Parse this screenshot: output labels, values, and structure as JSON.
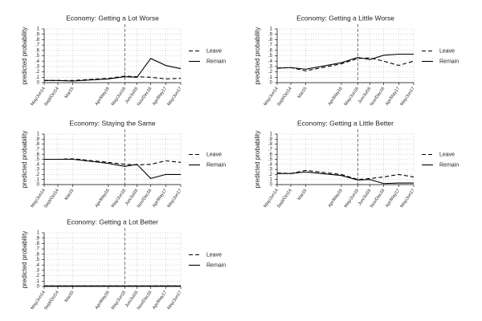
{
  "chart_data": [
    {
      "type": "line",
      "title": "Economy: Getting a Lot Worse",
      "y_label": "predicted probability",
      "categories": [
        "May/Jun14",
        "Sept/Oct14",
        "Mar15",
        "Apr/May16",
        "May/Jun16",
        "Jun/Jul16",
        "Nov/Dec16",
        "Apr/May17",
        "May/Jun17"
      ],
      "series": [
        {
          "name": "Leave",
          "color": "#000000",
          "dash": "dashed",
          "values": [
            0.04,
            0.04,
            0.04,
            0.08,
            0.12,
            0.11,
            0.1,
            0.07,
            0.08
          ]
        },
        {
          "name": "Remain",
          "color": "#000000",
          "dash": "solid",
          "values": [
            0.04,
            0.04,
            0.03,
            0.07,
            0.11,
            0.1,
            0.45,
            0.32,
            0.26
          ]
        }
      ],
      "ylim": [
        0,
        1
      ],
      "yticks": [
        0,
        {
          "value": 0.1,
          "label": ".1"
        },
        {
          "value": 0.2,
          "label": ".2"
        },
        {
          "value": 0.3,
          "label": ".3"
        },
        {
          "value": 0.4,
          "label": ".4"
        },
        {
          "value": 0.5,
          "label": ".5"
        },
        {
          "value": 0.6,
          "label": ".6"
        },
        {
          "value": 0.7,
          "label": ".7"
        },
        {
          "value": 0.8,
          "label": ".8"
        },
        {
          "value": 0.9,
          "label": ".9"
        },
        1
      ],
      "grid": true
    },
    {
      "type": "line",
      "title": "Economy: Getting a Little Worse",
      "y_label": "predicted probability",
      "categories": [
        "May/Jun14",
        "Sept/Oct14",
        "Mar15",
        "Apr/May16",
        "May/Jun16",
        "Jun/Jul16",
        "Nov/Dec16",
        "Apr/May17",
        "May/Jun17"
      ],
      "series": [
        {
          "name": "Leave",
          "color": "#000000",
          "dash": "dashed",
          "values": [
            0.27,
            0.28,
            0.22,
            0.35,
            0.45,
            0.46,
            0.4,
            0.32,
            0.4
          ]
        },
        {
          "name": "Remain",
          "color": "#000000",
          "dash": "solid",
          "values": [
            0.27,
            0.28,
            0.25,
            0.37,
            0.47,
            0.43,
            0.51,
            0.53,
            0.53
          ]
        }
      ],
      "ylim": [
        0,
        1
      ],
      "yticks": [
        0,
        {
          "value": 0.1,
          "label": ".1"
        },
        {
          "value": 0.2,
          "label": ".2"
        },
        {
          "value": 0.3,
          "label": ".3"
        },
        {
          "value": 0.4,
          "label": ".4"
        },
        {
          "value": 0.5,
          "label": ".5"
        },
        {
          "value": 0.6,
          "label": ".6"
        },
        {
          "value": 0.7,
          "label": ".7"
        },
        {
          "value": 0.8,
          "label": ".8"
        },
        {
          "value": 0.9,
          "label": ".9"
        },
        1
      ],
      "grid": true
    },
    {
      "type": "line",
      "title": "Economy: Staying the Same",
      "y_label": "predicted probability",
      "categories": [
        "May/Jun14",
        "Sept/Oct14",
        "Mar15",
        "Apr/May16",
        "May/Jun16",
        "Jun/Jul16",
        "Nov/Dec16",
        "Apr/May17",
        "May/Jun17"
      ],
      "series": [
        {
          "name": "Leave",
          "color": "#000000",
          "dash": "dashed",
          "values": [
            0.5,
            0.5,
            0.51,
            0.44,
            0.4,
            0.39,
            0.4,
            0.47,
            0.44
          ]
        },
        {
          "name": "Remain",
          "color": "#000000",
          "dash": "solid",
          "values": [
            0.5,
            0.5,
            0.5,
            0.42,
            0.36,
            0.4,
            0.12,
            0.2,
            0.2
          ]
        }
      ],
      "ylim": [
        0,
        1
      ],
      "yticks": [
        0,
        {
          "value": 0.1,
          "label": ".1"
        },
        {
          "value": 0.2,
          "label": ".2"
        },
        {
          "value": 0.3,
          "label": ".3"
        },
        {
          "value": 0.4,
          "label": ".4"
        },
        {
          "value": 0.5,
          "label": ".5"
        },
        {
          "value": 0.6,
          "label": ".6"
        },
        {
          "value": 0.7,
          "label": ".7"
        },
        {
          "value": 0.8,
          "label": ".8"
        },
        {
          "value": 0.9,
          "label": ".9"
        },
        1
      ],
      "grid": true
    },
    {
      "type": "line",
      "title": "Economy: Getting a Little Better",
      "y_label": "predicted probability",
      "categories": [
        "May/Jun14",
        "Sept/Oct14",
        "Mar15",
        "Apr/May16",
        "May/Jun16",
        "Jun/Jul16",
        "Nov/Dec16",
        "Apr/May17",
        "May/Jun17"
      ],
      "series": [
        {
          "name": "Leave",
          "color": "#000000",
          "dash": "dashed",
          "values": [
            0.23,
            0.22,
            0.28,
            0.2,
            0.1,
            0.12,
            0.15,
            0.2,
            0.15
          ]
        },
        {
          "name": "Remain",
          "color": "#000000",
          "dash": "solid",
          "values": [
            0.22,
            0.22,
            0.25,
            0.18,
            0.09,
            0.1,
            0.02,
            0.03,
            0.03
          ]
        }
      ],
      "ylim": [
        0,
        1
      ],
      "yticks": [
        0,
        {
          "value": 0.1,
          "label": ".1"
        },
        {
          "value": 0.2,
          "label": ".2"
        },
        {
          "value": 0.3,
          "label": ".3"
        },
        {
          "value": 0.4,
          "label": ".4"
        },
        {
          "value": 0.5,
          "label": ".5"
        },
        {
          "value": 0.6,
          "label": ".6"
        },
        {
          "value": 0.7,
          "label": ".7"
        },
        {
          "value": 0.8,
          "label": ".8"
        },
        {
          "value": 0.9,
          "label": ".9"
        },
        1
      ],
      "grid": true
    },
    {
      "type": "line",
      "title": "Economy: Getting a Lot Better",
      "y_label": "predicted probability",
      "categories": [
        "May/Jun14",
        "Sept/Oct14",
        "Mar15",
        "Apr/May16",
        "May/Jun16",
        "Jun/Jul16",
        "Nov/Dec16",
        "Apr/May17",
        "May/Jun17"
      ],
      "series": [
        {
          "name": "Leave",
          "color": "#000000",
          "dash": "dashed",
          "values": [
            0.01,
            0.01,
            0.01,
            0.01,
            0.01,
            0.01,
            0.01,
            0.01,
            0.01
          ]
        },
        {
          "name": "Remain",
          "color": "#000000",
          "dash": "solid",
          "values": [
            0.01,
            0.01,
            0.01,
            0.01,
            0.01,
            0.01,
            0.01,
            0.01,
            0.01
          ]
        }
      ],
      "ylim": [
        0,
        1
      ],
      "yticks": [
        0,
        {
          "value": 0.1,
          "label": ".1"
        },
        {
          "value": 0.2,
          "label": ".2"
        },
        {
          "value": 0.3,
          "label": ".3"
        },
        {
          "value": 0.4,
          "label": ".4"
        },
        {
          "value": 0.5,
          "label": ".5"
        },
        {
          "value": 0.6,
          "label": ".6"
        },
        {
          "value": 0.7,
          "label": ".7"
        },
        {
          "value": 0.8,
          "label": ".8"
        },
        {
          "value": 0.9,
          "label": ".9"
        },
        1
      ],
      "grid": true
    }
  ]
}
